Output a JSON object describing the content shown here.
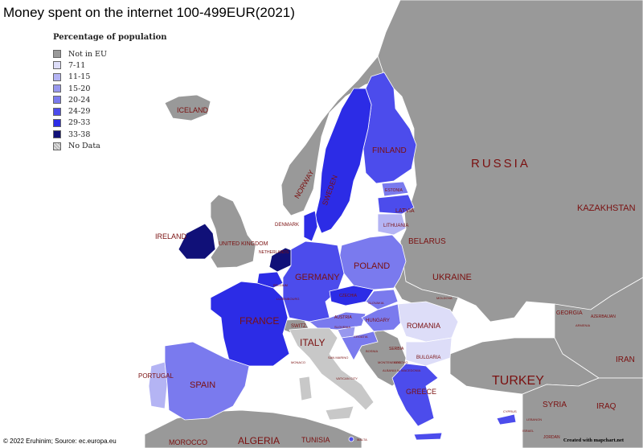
{
  "title": "Money spent on the internet 100-499EUR(2021)",
  "legend": {
    "title": "Percentage of population",
    "items": [
      {
        "label": "Not in EU",
        "color": "#999999"
      },
      {
        "label": "7-11",
        "color": "#ddddf8"
      },
      {
        "label": "11-15",
        "color": "#b4b4f4"
      },
      {
        "label": "15-20",
        "color": "#9898ee"
      },
      {
        "label": "20-24",
        "color": "#7a7aee"
      },
      {
        "label": "24-29",
        "color": "#4c4cec"
      },
      {
        "label": "29-33",
        "color": "#2c2ce6"
      },
      {
        "label": "33-38",
        "color": "#101078"
      },
      {
        "label": "No Data",
        "color": "#c8c8c8"
      }
    ]
  },
  "country_labels": {
    "iceland": "ICELAND",
    "russia": "RUSSIA",
    "kazakhstan": "KAZAKHSTAN",
    "finland": "FINLAND",
    "norway": "NORWAY",
    "sweden": "SWEDEN",
    "estonia": "ESTONIA",
    "latvia": "LATVIA",
    "lithuania": "LITHUANIA",
    "denmark": "DENMARK",
    "ireland": "IRELAND",
    "united_kingdom": "UNITED KINGDOM",
    "netherlands": "NETHERLANDS",
    "belarus": "BELARUS",
    "poland": "POLAND",
    "germany": "GERMANY",
    "belgium": "BELGIUM",
    "luxembourg": "LUXEMBOURG",
    "czechia": "CZECHIA",
    "slovakia": "SLOVAKIA",
    "ukraine": "UKRAINE",
    "moldova": "MOLDOVA",
    "france": "FRANCE",
    "switzerland": "SWITZ.",
    "austria": "AUSTRIA",
    "slovenia": "SLOVENIA",
    "hungary": "HUNGARY",
    "romania": "ROMANIA",
    "croatia": "CROATIA",
    "italy": "ITALY",
    "san_marino": "SAN MARINO",
    "monaco": "MONACO",
    "vatican": "VATICAN CITY",
    "serbia": "SERBIA",
    "bosnia": "BOSNIA",
    "montenegro": "MONTENEGRO",
    "kosovo": "KOSOVO",
    "albania": "ALBANIA",
    "n_macedonia": "N. MACEDONIA",
    "bulgaria": "BULGARIA",
    "georgia": "GEORGIA",
    "armenia": "ARMENIA",
    "azerbaijan": "AZERBAIJAN",
    "turkey": "TURKEY",
    "iran": "IRAN",
    "syria": "SYRIA",
    "iraq": "IRAQ",
    "lebanon": "LEBANON",
    "cyprus": "CYPRUS",
    "portugal": "PORTUGAL",
    "spain": "SPAIN",
    "greece": "GREECE",
    "malta": "MALTA",
    "morocco": "MOROCCO",
    "algeria": "ALGERIA",
    "tunisia": "TUNISIA",
    "israel": "ISRAEL",
    "jordan": "JORDAN"
  },
  "credit": "© 2022 Eruhinim; Source: ec.europa.eu",
  "credit_right": "Created with mapchart.net"
}
